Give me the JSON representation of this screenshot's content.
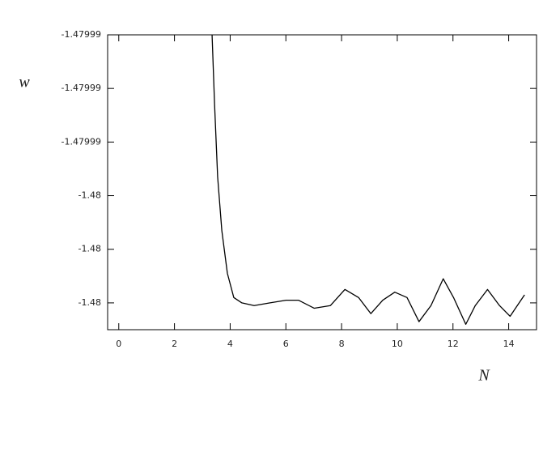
{
  "chart_data": {
    "type": "line",
    "x_label": "N",
    "y_label": "w",
    "xlim": [
      -0.4,
      15
    ],
    "ylim": [
      -1.480001,
      -1.47999
    ],
    "xticks": [
      0,
      2,
      4,
      6,
      8,
      10,
      12,
      14
    ],
    "yticks": [
      -1.47999,
      {
        "value": -1.479992,
        "label": "-1.47999"
      },
      {
        "value": -1.479994,
        "label": "-1.47999"
      },
      {
        "value": -1.479996,
        "label": "-1.48"
      },
      {
        "value": -1.479998,
        "label": "-1.48"
      },
      -1.48
    ],
    "grid": false,
    "series": [
      {
        "color": "#000000",
        "x": [
          3.35,
          3.44,
          3.55,
          3.7,
          3.9,
          4.13,
          4.42,
          4.86,
          5.43,
          6.01,
          6.45,
          7.02,
          7.6,
          8.12,
          8.61,
          9.05,
          9.48,
          9.91,
          10.35,
          10.78,
          11.21,
          11.65,
          12.02,
          12.46,
          12.8,
          13.24,
          13.67,
          14.05,
          14.57
        ],
        "values": [
          -1.47999,
          -1.4799926,
          -1.4799953,
          -1.4799973,
          -1.4799989,
          -1.4799998,
          -1.48,
          -1.4800001,
          -1.48,
          -1.4799999,
          -1.4799999,
          -1.4800002,
          -1.4800001,
          -1.4799995,
          -1.4799998,
          -1.4800004,
          -1.4799999,
          -1.4799996,
          -1.4799998,
          -1.4800007,
          -1.4800001,
          -1.4799991,
          -1.4799998,
          -1.4800008,
          -1.4800001,
          -1.4799995,
          -1.4800001,
          -1.4800005,
          -1.4799997
        ]
      }
    ]
  }
}
